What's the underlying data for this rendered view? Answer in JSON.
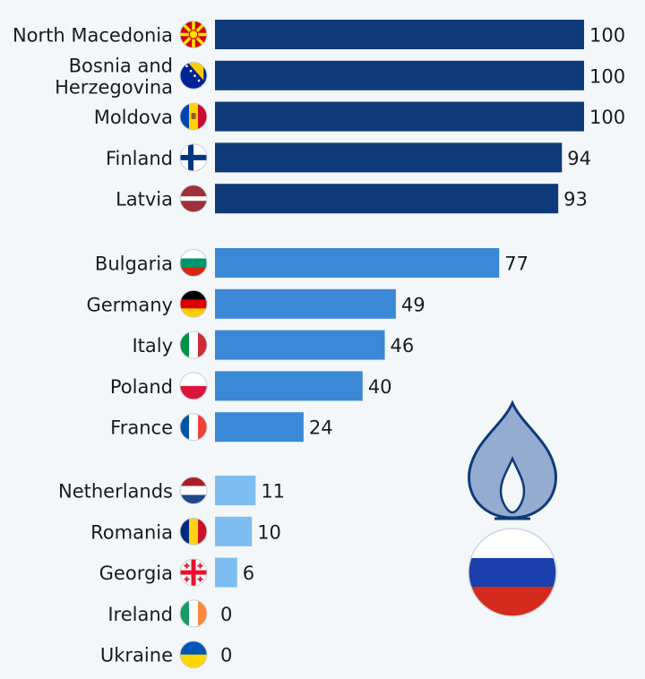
{
  "chart_data": {
    "type": "bar",
    "orientation": "horizontal",
    "title": "",
    "xlabel": "",
    "ylabel": "",
    "xlim": [
      0,
      100
    ],
    "grid": false,
    "legend": "none",
    "categories": [
      "North Macedonia",
      "Bosnia and Herzegovina",
      "Moldova",
      "Finland",
      "Latvia",
      "Bulgaria",
      "Germany",
      "Italy",
      "Poland",
      "France",
      "Netherlands",
      "Romania",
      "Georgia",
      "Ireland",
      "Ukraine"
    ],
    "category_lines": [
      [
        "North Macedonia"
      ],
      [
        "Bosnia and",
        "Herzegovina"
      ],
      [
        "Moldova"
      ],
      [
        "Finland"
      ],
      [
        "Latvia"
      ],
      [
        "Bulgaria"
      ],
      [
        "Germany"
      ],
      [
        "Italy"
      ],
      [
        "Poland"
      ],
      [
        "France"
      ],
      [
        "Netherlands"
      ],
      [
        "Romania"
      ],
      [
        "Georgia"
      ],
      [
        "Ireland"
      ],
      [
        "Ukraine"
      ]
    ],
    "values": [
      100,
      100,
      100,
      94,
      93,
      77,
      49,
      46,
      40,
      24,
      11,
      10,
      6,
      0,
      0
    ],
    "groups": [
      0,
      0,
      0,
      0,
      0,
      1,
      1,
      1,
      1,
      1,
      2,
      2,
      2,
      2,
      2
    ],
    "group_colors": [
      "#0f3a7a",
      "#3b88d6",
      "#7dbdf2"
    ],
    "flag_icons": [
      "north-macedonia-flag-icon",
      "bosnia-flag-icon",
      "moldova-flag-icon",
      "finland-flag-icon",
      "latvia-flag-icon",
      "bulgaria-flag-icon",
      "germany-flag-icon",
      "italy-flag-icon",
      "poland-flag-icon",
      "france-flag-icon",
      "netherlands-flag-icon",
      "romania-flag-icon",
      "georgia-flag-icon",
      "ireland-flag-icon",
      "ukraine-flag-icon"
    ]
  },
  "decoration": {
    "flame_icon": "gas-flame-icon",
    "globe_icon": "russia-flag-globe-icon",
    "flame_color": "#94acd0",
    "flame_outline": "#0f3a7a",
    "russia_colors": [
      "#ffffff",
      "#1c3fae",
      "#d52b1e"
    ]
  }
}
